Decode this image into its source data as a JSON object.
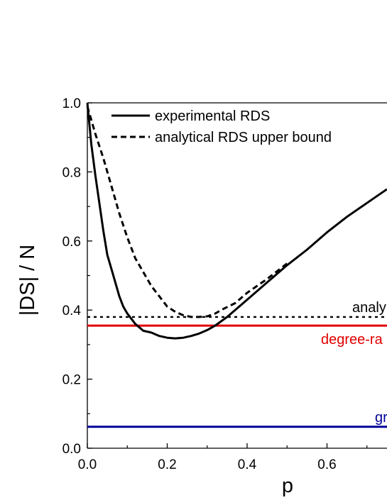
{
  "chart_data": {
    "type": "line",
    "xlabel": "p",
    "ylabel": "|DS| / N",
    "xlim": [
      0.0,
      0.75
    ],
    "ylim": [
      0.0,
      1.0
    ],
    "x_ticks": [
      "0.0",
      "0.2",
      "0.4",
      "0.6"
    ],
    "y_ticks": [
      "0.0",
      "0.2",
      "0.4",
      "0.6",
      "0.8",
      "1.0"
    ],
    "grid": false,
    "legend_position": "top-left",
    "series": [
      {
        "name": "experimental RDS",
        "style": "solid",
        "color": "#000000",
        "points": [
          [
            0.0,
            1.0
          ],
          [
            0.01,
            0.88
          ],
          [
            0.02,
            0.79
          ],
          [
            0.03,
            0.71
          ],
          [
            0.04,
            0.63
          ],
          [
            0.05,
            0.56
          ],
          [
            0.06,
            0.52
          ],
          [
            0.07,
            0.48
          ],
          [
            0.08,
            0.44
          ],
          [
            0.09,
            0.41
          ],
          [
            0.1,
            0.39
          ],
          [
            0.12,
            0.36
          ],
          [
            0.14,
            0.34
          ],
          [
            0.16,
            0.335
          ],
          [
            0.18,
            0.325
          ],
          [
            0.2,
            0.32
          ],
          [
            0.22,
            0.318
          ],
          [
            0.24,
            0.32
          ],
          [
            0.26,
            0.325
          ],
          [
            0.28,
            0.332
          ],
          [
            0.3,
            0.342
          ],
          [
            0.32,
            0.355
          ],
          [
            0.35,
            0.38
          ],
          [
            0.4,
            0.43
          ],
          [
            0.45,
            0.48
          ],
          [
            0.5,
            0.53
          ],
          [
            0.55,
            0.575
          ],
          [
            0.6,
            0.625
          ],
          [
            0.65,
            0.67
          ],
          [
            0.7,
            0.71
          ],
          [
            0.75,
            0.75
          ]
        ]
      },
      {
        "name": "analytical RDS upper bound",
        "style": "dashed",
        "color": "#000000",
        "points": [
          [
            0.0,
            0.99
          ],
          [
            0.02,
            0.91
          ],
          [
            0.04,
            0.84
          ],
          [
            0.06,
            0.76
          ],
          [
            0.08,
            0.68
          ],
          [
            0.1,
            0.61
          ],
          [
            0.12,
            0.55
          ],
          [
            0.14,
            0.51
          ],
          [
            0.16,
            0.47
          ],
          [
            0.18,
            0.44
          ],
          [
            0.2,
            0.41
          ],
          [
            0.22,
            0.395
          ],
          [
            0.24,
            0.385
          ],
          [
            0.26,
            0.38
          ],
          [
            0.28,
            0.38
          ],
          [
            0.3,
            0.382
          ],
          [
            0.32,
            0.39
          ],
          [
            0.34,
            0.403
          ],
          [
            0.37,
            0.42
          ],
          [
            0.4,
            0.45
          ],
          [
            0.45,
            0.49
          ],
          [
            0.5,
            0.535
          ]
        ]
      }
    ],
    "reference_lines": [
      {
        "y": 0.38,
        "style": "dotted",
        "color": "#000000",
        "label": "analy"
      },
      {
        "y": 0.355,
        "style": "solid",
        "color": "#e00000",
        "label": "degree-ra"
      },
      {
        "y": 0.062,
        "style": "solid",
        "color": "#00009a",
        "label": "gr"
      }
    ]
  }
}
